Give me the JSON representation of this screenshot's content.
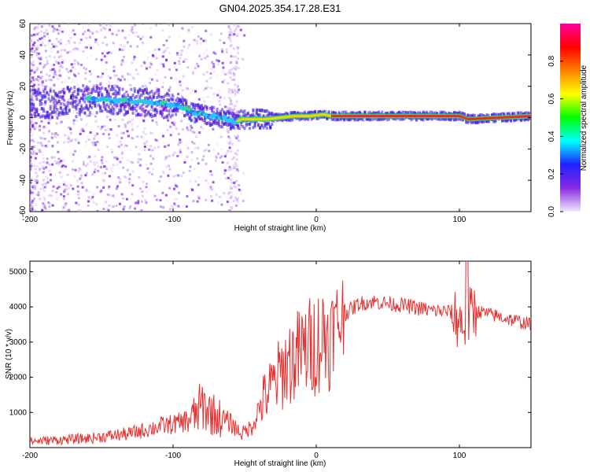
{
  "title": "GN04.2025.354.17.28.E31",
  "chart_data": [
    {
      "type": "heatmap",
      "name": "spectrogram",
      "xlabel": "Height of straight line (km)",
      "ylabel": "Frequency (Hz)",
      "xlim": [
        -200,
        150
      ],
      "ylim": [
        -60,
        60
      ],
      "xticks": [
        -200,
        -100,
        0,
        100
      ],
      "xtick_labels": [
        "-200",
        "-100",
        "0",
        "100"
      ],
      "yticks": [
        -60,
        -40,
        -20,
        0,
        20,
        40,
        60
      ],
      "ytick_labels": [
        "-60",
        "-40",
        "-20",
        "0",
        "20",
        "40",
        "60"
      ],
      "ridge": {
        "x": [
          -160,
          -140,
          -120,
          -105,
          -95,
          -85,
          -75,
          -65,
          -58,
          -52,
          -45,
          -35,
          -25,
          -15,
          -5,
          5,
          10,
          20,
          60,
          90,
          100,
          103,
          106,
          150
        ],
        "y": [
          12,
          11,
          10,
          9,
          7,
          3,
          1,
          0,
          -3,
          -1,
          -1,
          -1,
          0,
          1,
          1,
          2,
          1,
          1,
          1,
          1,
          1,
          0,
          -1,
          1
        ]
      },
      "colorbar": {
        "label": "Normalized spectral amplitude",
        "range": [
          0,
          1
        ],
        "ticks": [
          0.0,
          0.2,
          0.4,
          0.6,
          0.8
        ],
        "tick_labels": [
          "0.0",
          "0.2",
          "0.4",
          "0.6",
          "0.8"
        ],
        "colors": [
          "#f0e8ff",
          "#8a2be2",
          "#2020ff",
          "#00ffff",
          "#00ff00",
          "#ffff00",
          "#ff8000",
          "#ff0000",
          "#ff00a0"
        ]
      }
    },
    {
      "type": "line",
      "name": "snr",
      "xlabel": "Height of straight line (km)",
      "ylabel": "SNR (10 * v/v)",
      "xlim": [
        -200,
        150
      ],
      "ylim": [
        0,
        5300
      ],
      "xticks": [
        -200,
        -100,
        0,
        100
      ],
      "xtick_labels": [
        "-200",
        "-100",
        "0",
        "100"
      ],
      "yticks": [
        1000,
        2000,
        3000,
        4000,
        5000
      ],
      "ytick_labels": [
        "1000",
        "2000",
        "3000",
        "4000",
        "5000"
      ],
      "color": "#e83030",
      "envelope": {
        "x": [
          -200,
          -160,
          -130,
          -110,
          -95,
          -85,
          -80,
          -70,
          -60,
          -52,
          -45,
          -38,
          -30,
          -20,
          -10,
          0,
          10,
          20,
          30,
          40,
          60,
          80,
          95,
          100,
          105,
          110,
          130,
          150
        ],
        "y": [
          180,
          260,
          400,
          600,
          700,
          900,
          1200,
          900,
          700,
          400,
          600,
          1300,
          1800,
          2400,
          2700,
          3000,
          3300,
          3800,
          4100,
          4150,
          4050,
          3900,
          3850,
          3600,
          3500,
          3900,
          3700,
          3500
        ]
      }
    }
  ]
}
